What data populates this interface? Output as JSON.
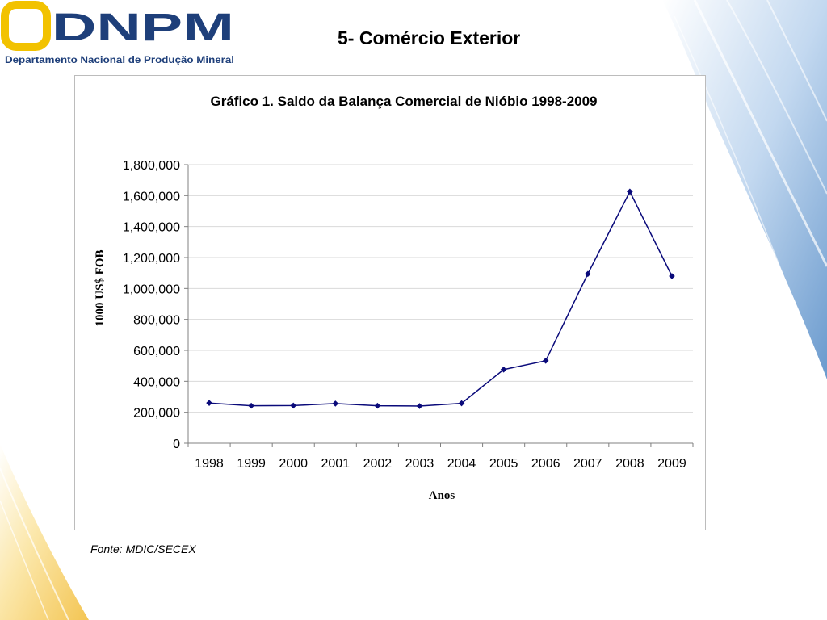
{
  "header": {
    "logo_text": "DNPM",
    "logo_subtitle": "Departamento Nacional de Produção Mineral",
    "slide_title": "5- Comércio Exterior"
  },
  "colors": {
    "logo_blue": "#1e3f7a",
    "logo_gold": "#f2c200",
    "series": "#0a0a7a",
    "accent_blue": "#6f9fd0",
    "accent_gold": "#f5d46a"
  },
  "chart_data": {
    "type": "line",
    "title": "Gráfico 1. Saldo da Balança Comercial de Nióbio 1998-2009",
    "xlabel": "Anos",
    "ylabel": "1000 US$ FOB",
    "ylim": [
      0,
      1800000
    ],
    "yticks": [
      0,
      200000,
      400000,
      600000,
      800000,
      1000000,
      1200000,
      1400000,
      1600000,
      1800000
    ],
    "ytick_labels": [
      "0",
      "200,000",
      "400,000",
      "600,000",
      "800,000",
      "1,000,000",
      "1,200,000",
      "1,400,000",
      "1,600,000",
      "1,800,000"
    ],
    "grid": true,
    "legend": "none",
    "categories": [
      "1998",
      "1999",
      "2000",
      "2001",
      "2002",
      "2003",
      "2004",
      "2005",
      "2006",
      "2007",
      "2008",
      "2009"
    ],
    "series": [
      {
        "values": [
          260000,
          242000,
          243000,
          256000,
          242000,
          240000,
          258000,
          476000,
          533000,
          1094000,
          1626000,
          1080000
        ]
      }
    ]
  },
  "footer": {
    "source": "Fonte: MDIC/SECEX"
  }
}
